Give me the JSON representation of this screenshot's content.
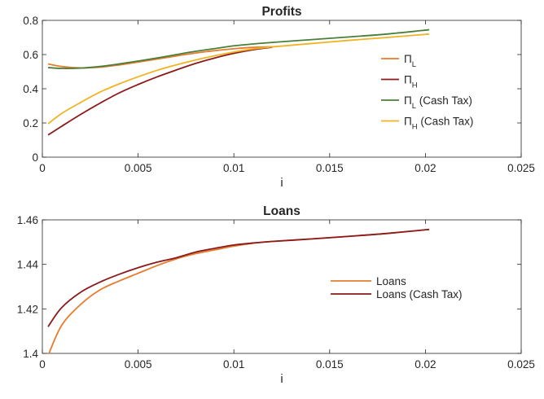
{
  "chart_data": [
    {
      "type": "line",
      "title": "Profits",
      "xlabel": "i",
      "ylabel": "",
      "xlim": [
        0,
        0.025
      ],
      "ylim": [
        0,
        0.8
      ],
      "x_ticks": [
        "0",
        "0.005",
        "0.01",
        "0.015",
        "0.02",
        "0.025"
      ],
      "y_ticks": [
        "0",
        "0.2",
        "0.4",
        "0.6",
        "0.8"
      ],
      "grid": false,
      "legend_position": "right",
      "series": [
        {
          "name": "Π_L",
          "legend": {
            "symbol": "Π",
            "sub": "L",
            "suffix": ""
          },
          "color": "#e57c2f",
          "x": [
            0.0003,
            0.001,
            0.002,
            0.003,
            0.004,
            0.005,
            0.006,
            0.007,
            0.008,
            0.009,
            0.01,
            0.011,
            0.012
          ],
          "y": [
            0.545,
            0.53,
            0.522,
            0.526,
            0.539,
            0.556,
            0.574,
            0.592,
            0.609,
            0.623,
            0.634,
            0.642,
            0.646
          ]
        },
        {
          "name": "Π_H",
          "legend": {
            "symbol": "Π",
            "sub": "H",
            "suffix": ""
          },
          "color": "#8b1a1a",
          "x": [
            0.0003,
            0.001,
            0.002,
            0.003,
            0.004,
            0.005,
            0.006,
            0.007,
            0.008,
            0.009,
            0.01,
            0.011,
            0.012
          ],
          "y": [
            0.13,
            0.18,
            0.25,
            0.315,
            0.375,
            0.425,
            0.47,
            0.51,
            0.548,
            0.58,
            0.607,
            0.628,
            0.643
          ]
        },
        {
          "name": "Π_L (Cash Tax)",
          "legend": {
            "symbol": "Π",
            "sub": "L",
            "suffix": " (Cash Tax)"
          },
          "color": "#4a7f3a",
          "x": [
            0.0003,
            0.001,
            0.002,
            0.003,
            0.004,
            0.005,
            0.006,
            0.007,
            0.008,
            0.009,
            0.01,
            0.011,
            0.012,
            0.014,
            0.016,
            0.018,
            0.0202
          ],
          "y": [
            0.524,
            0.519,
            0.521,
            0.53,
            0.545,
            0.562,
            0.58,
            0.6,
            0.619,
            0.635,
            0.651,
            0.662,
            0.671,
            0.687,
            0.703,
            0.72,
            0.745
          ]
        },
        {
          "name": "Π_H (Cash Tax)",
          "legend": {
            "symbol": "Π",
            "sub": "H",
            "suffix": " (Cash Tax)"
          },
          "color": "#f0b323",
          "x": [
            0.0003,
            0.001,
            0.002,
            0.003,
            0.004,
            0.005,
            0.006,
            0.007,
            0.008,
            0.009,
            0.01,
            0.011,
            0.012,
            0.014,
            0.016,
            0.018,
            0.0202
          ],
          "y": [
            0.195,
            0.255,
            0.32,
            0.38,
            0.428,
            0.47,
            0.508,
            0.54,
            0.568,
            0.593,
            0.615,
            0.633,
            0.645,
            0.664,
            0.683,
            0.7,
            0.72
          ]
        }
      ]
    },
    {
      "type": "line",
      "title": "Loans",
      "xlabel": "i",
      "ylabel": "",
      "xlim": [
        0,
        0.025
      ],
      "ylim": [
        1.4,
        1.46
      ],
      "x_ticks": [
        "0",
        "0.005",
        "0.01",
        "0.015",
        "0.02",
        "0.025"
      ],
      "y_ticks": [
        "1.4",
        "1.42",
        "1.44",
        "1.46"
      ],
      "grid": false,
      "legend_position": "right",
      "series": [
        {
          "name": "Loans",
          "legend": {
            "symbol": "Loans",
            "sub": "",
            "suffix": ""
          },
          "color": "#e57c2f",
          "x": [
            0.0003,
            0.001,
            0.002,
            0.003,
            0.004,
            0.005,
            0.006,
            0.007,
            0.008,
            0.009,
            0.01,
            0.011,
            0.012,
            0.014,
            0.016,
            0.018,
            0.0202
          ],
          "y": [
            1.399,
            1.4125,
            1.422,
            1.4285,
            1.4325,
            1.436,
            1.4395,
            1.4425,
            1.4448,
            1.4465,
            1.4482,
            1.4495,
            1.4503,
            1.4514,
            1.4526,
            1.4539,
            1.4557
          ]
        },
        {
          "name": "Loans (Cash Tax)",
          "legend": {
            "symbol": "Loans (Cash Tax)",
            "sub": "",
            "suffix": ""
          },
          "color": "#8b1a1a",
          "x": [
            0.0003,
            0.001,
            0.002,
            0.003,
            0.004,
            0.005,
            0.006,
            0.007,
            0.008,
            0.009,
            0.01,
            0.011,
            0.012,
            0.014,
            0.016,
            0.018,
            0.0202
          ],
          "y": [
            1.412,
            1.4205,
            1.4275,
            1.432,
            1.4355,
            1.4385,
            1.441,
            1.443,
            1.4455,
            1.4472,
            1.4487,
            1.4496,
            1.4503,
            1.4514,
            1.4526,
            1.4539,
            1.4557
          ]
        }
      ]
    }
  ]
}
